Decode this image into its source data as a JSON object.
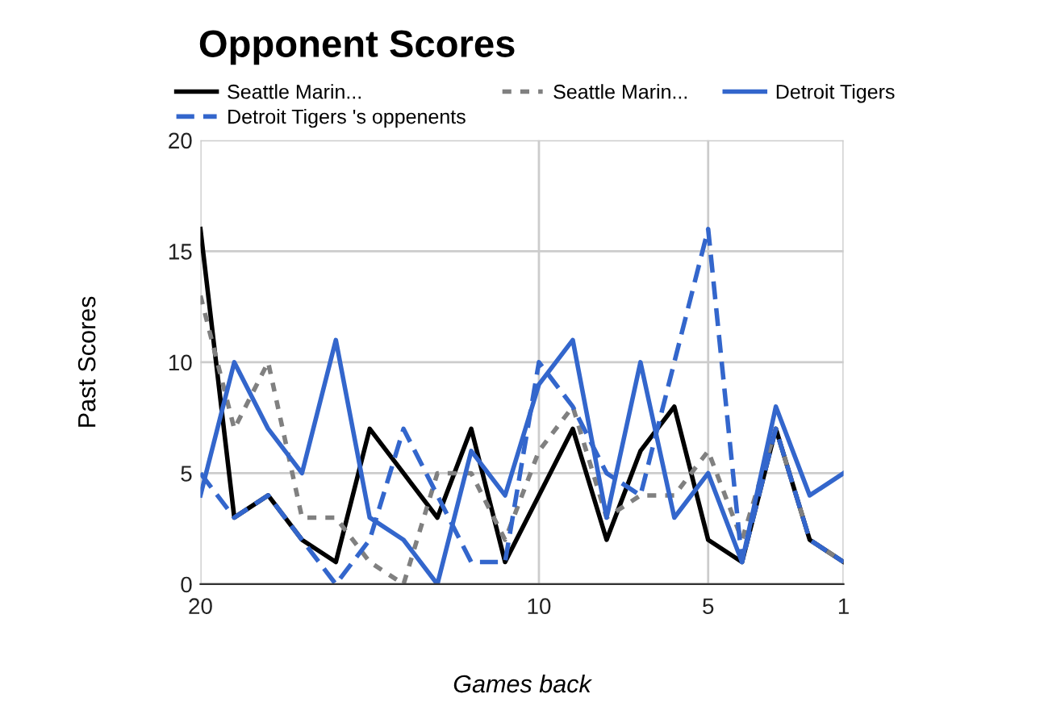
{
  "chart_data": {
    "type": "line",
    "title": "Opponent Scores",
    "xlabel": "Games back",
    "ylabel": "Past Scores",
    "x": [
      20,
      19,
      18,
      17,
      16,
      15,
      14,
      13,
      12,
      11,
      10,
      9,
      8,
      7,
      6,
      5,
      4,
      3,
      2,
      1
    ],
    "xlim": [
      20,
      1
    ],
    "xticks": [
      20,
      10,
      5,
      1
    ],
    "ylim": [
      0,
      20
    ],
    "yticks": [
      0,
      5,
      10,
      15,
      20
    ],
    "grid": true,
    "legend": "top",
    "marker": "none",
    "series": [
      {
        "name": "Seattle Marin...",
        "color": "#000000",
        "line_style": "solid",
        "values": [
          16,
          3,
          4,
          2,
          1,
          7,
          5,
          3,
          7,
          1,
          4,
          7,
          2,
          6,
          8,
          2,
          1,
          7,
          2,
          1
        ]
      },
      {
        "name": "Seattle Marin...",
        "color": "#808080",
        "line_style": "dotted",
        "values": [
          13,
          7,
          10,
          3,
          3,
          1,
          0,
          5,
          5,
          2,
          6,
          8,
          3,
          4,
          4,
          6,
          2,
          7,
          2,
          1
        ]
      },
      {
        "name": "Detroit Tigers",
        "color": "#3366cc",
        "line_style": "solid",
        "values": [
          4,
          10,
          7,
          5,
          11,
          3,
          2,
          0,
          6,
          4,
          9,
          11,
          3,
          10,
          3,
          5,
          1,
          8,
          4,
          5
        ]
      },
      {
        "name": "Detroit Tigers 's oppenents",
        "color": "#3366cc",
        "line_style": "dashed",
        "values": [
          5,
          3,
          4,
          2,
          0,
          2,
          7,
          4,
          1,
          1,
          10,
          8,
          5,
          4,
          10,
          16,
          1,
          7,
          2,
          1
        ]
      }
    ]
  }
}
